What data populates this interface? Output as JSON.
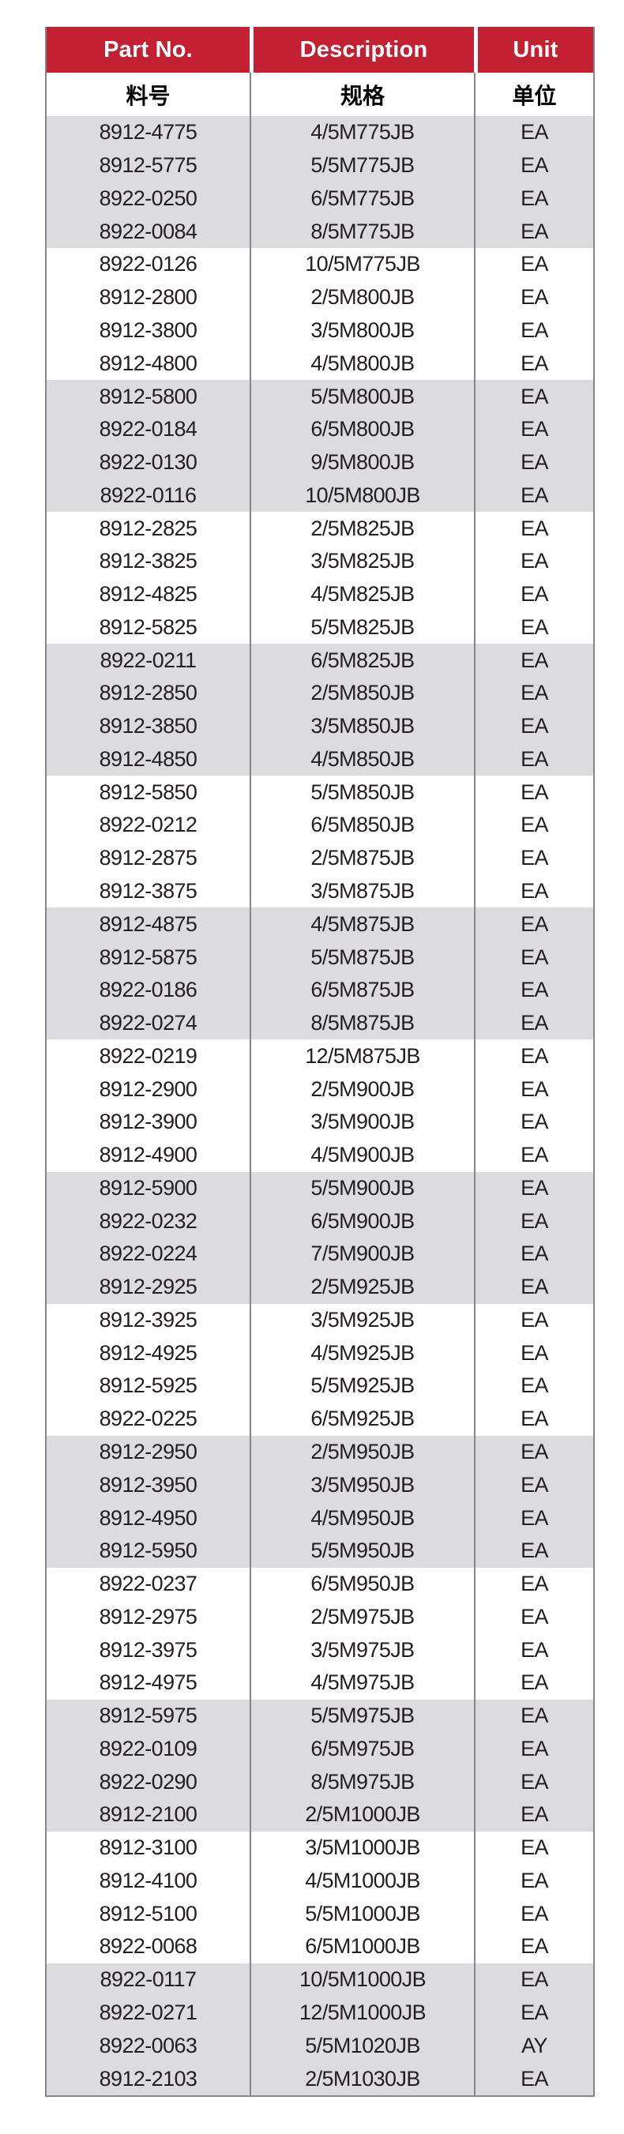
{
  "table": {
    "header": {
      "part_no": "Part No.",
      "description": "Description",
      "unit": "Unit"
    },
    "subheader": {
      "part_no": "料号",
      "description": "规格",
      "unit": "单位"
    },
    "colors": {
      "header_bg": "#c32031",
      "header_text": "#ffffff",
      "stripe_bg": "#dcdcde",
      "row_bg": "#ffffff",
      "grid_line": "#85878a",
      "text": "#231f20"
    },
    "rows": [
      {
        "part": "8912-4775",
        "desc": "4/5M775JB",
        "unit": "EA"
      },
      {
        "part": "8912-5775",
        "desc": "5/5M775JB",
        "unit": "EA"
      },
      {
        "part": "8922-0250",
        "desc": "6/5M775JB",
        "unit": "EA"
      },
      {
        "part": "8922-0084",
        "desc": "8/5M775JB",
        "unit": "EA"
      },
      {
        "part": "8922-0126",
        "desc": "10/5M775JB",
        "unit": "EA"
      },
      {
        "part": "8912-2800",
        "desc": "2/5M800JB",
        "unit": "EA"
      },
      {
        "part": "8912-3800",
        "desc": "3/5M800JB",
        "unit": "EA"
      },
      {
        "part": "8912-4800",
        "desc": "4/5M800JB",
        "unit": "EA"
      },
      {
        "part": "8912-5800",
        "desc": "5/5M800JB",
        "unit": "EA"
      },
      {
        "part": "8922-0184",
        "desc": "6/5M800JB",
        "unit": "EA"
      },
      {
        "part": "8922-0130",
        "desc": "9/5M800JB",
        "unit": "EA"
      },
      {
        "part": "8922-0116",
        "desc": "10/5M800JB",
        "unit": "EA"
      },
      {
        "part": "8912-2825",
        "desc": "2/5M825JB",
        "unit": "EA"
      },
      {
        "part": "8912-3825",
        "desc": "3/5M825JB",
        "unit": "EA"
      },
      {
        "part": "8912-4825",
        "desc": "4/5M825JB",
        "unit": "EA"
      },
      {
        "part": "8912-5825",
        "desc": "5/5M825JB",
        "unit": "EA"
      },
      {
        "part": "8922-0211",
        "desc": "6/5M825JB",
        "unit": "EA"
      },
      {
        "part": "8912-2850",
        "desc": "2/5M850JB",
        "unit": "EA"
      },
      {
        "part": "8912-3850",
        "desc": "3/5M850JB",
        "unit": "EA"
      },
      {
        "part": "8912-4850",
        "desc": "4/5M850JB",
        "unit": "EA"
      },
      {
        "part": "8912-5850",
        "desc": "5/5M850JB",
        "unit": "EA"
      },
      {
        "part": "8922-0212",
        "desc": "6/5M850JB",
        "unit": "EA"
      },
      {
        "part": "8912-2875",
        "desc": "2/5M875JB",
        "unit": "EA"
      },
      {
        "part": "8912-3875",
        "desc": "3/5M875JB",
        "unit": "EA"
      },
      {
        "part": "8912-4875",
        "desc": "4/5M875JB",
        "unit": "EA"
      },
      {
        "part": "8912-5875",
        "desc": "5/5M875JB",
        "unit": "EA"
      },
      {
        "part": "8922-0186",
        "desc": "6/5M875JB",
        "unit": "EA"
      },
      {
        "part": "8922-0274",
        "desc": "8/5M875JB",
        "unit": "EA"
      },
      {
        "part": "8922-0219",
        "desc": "12/5M875JB",
        "unit": "EA"
      },
      {
        "part": "8912-2900",
        "desc": "2/5M900JB",
        "unit": "EA"
      },
      {
        "part": "8912-3900",
        "desc": "3/5M900JB",
        "unit": "EA"
      },
      {
        "part": "8912-4900",
        "desc": "4/5M900JB",
        "unit": "EA"
      },
      {
        "part": "8912-5900",
        "desc": "5/5M900JB",
        "unit": "EA"
      },
      {
        "part": "8922-0232",
        "desc": "6/5M900JB",
        "unit": "EA"
      },
      {
        "part": "8922-0224",
        "desc": "7/5M900JB",
        "unit": "EA"
      },
      {
        "part": "8912-2925",
        "desc": "2/5M925JB",
        "unit": "EA"
      },
      {
        "part": "8912-3925",
        "desc": "3/5M925JB",
        "unit": "EA"
      },
      {
        "part": "8912-4925",
        "desc": "4/5M925JB",
        "unit": "EA"
      },
      {
        "part": "8912-5925",
        "desc": "5/5M925JB",
        "unit": "EA"
      },
      {
        "part": "8922-0225",
        "desc": "6/5M925JB",
        "unit": "EA"
      },
      {
        "part": "8912-2950",
        "desc": "2/5M950JB",
        "unit": "EA"
      },
      {
        "part": "8912-3950",
        "desc": "3/5M950JB",
        "unit": "EA"
      },
      {
        "part": "8912-4950",
        "desc": "4/5M950JB",
        "unit": "EA"
      },
      {
        "part": "8912-5950",
        "desc": "5/5M950JB",
        "unit": "EA"
      },
      {
        "part": "8922-0237",
        "desc": "6/5M950JB",
        "unit": "EA"
      },
      {
        "part": "8912-2975",
        "desc": "2/5M975JB",
        "unit": "EA"
      },
      {
        "part": "8912-3975",
        "desc": "3/5M975JB",
        "unit": "EA"
      },
      {
        "part": "8912-4975",
        "desc": "4/5M975JB",
        "unit": "EA"
      },
      {
        "part": "8912-5975",
        "desc": "5/5M975JB",
        "unit": "EA"
      },
      {
        "part": "8922-0109",
        "desc": "6/5M975JB",
        "unit": "EA"
      },
      {
        "part": "8922-0290",
        "desc": "8/5M975JB",
        "unit": "EA"
      },
      {
        "part": "8912-2100",
        "desc": "2/5M1000JB",
        "unit": "EA"
      },
      {
        "part": "8912-3100",
        "desc": "3/5M1000JB",
        "unit": "EA"
      },
      {
        "part": "8912-4100",
        "desc": "4/5M1000JB",
        "unit": "EA"
      },
      {
        "part": "8912-5100",
        "desc": "5/5M1000JB",
        "unit": "EA"
      },
      {
        "part": "8922-0068",
        "desc": "6/5M1000JB",
        "unit": "EA"
      },
      {
        "part": "8922-0117",
        "desc": "10/5M1000JB",
        "unit": "EA"
      },
      {
        "part": "8922-0271",
        "desc": "12/5M1000JB",
        "unit": "EA"
      },
      {
        "part": "8922-0063",
        "desc": "5/5M1020JB",
        "unit": "AY"
      },
      {
        "part": "8912-2103",
        "desc": "2/5M1030JB",
        "unit": "EA"
      }
    ],
    "stripe_group_size": 4
  }
}
